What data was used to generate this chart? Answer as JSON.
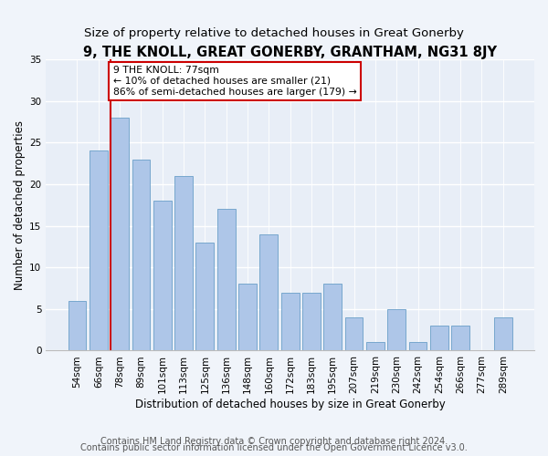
{
  "title": "9, THE KNOLL, GREAT GONERBY, GRANTHAM, NG31 8JY",
  "subtitle": "Size of property relative to detached houses in Great Gonerby",
  "xlabel": "Distribution of detached houses by size in Great Gonerby",
  "ylabel": "Number of detached properties",
  "categories": [
    "54sqm",
    "66sqm",
    "78sqm",
    "89sqm",
    "101sqm",
    "113sqm",
    "125sqm",
    "136sqm",
    "148sqm",
    "160sqm",
    "172sqm",
    "183sqm",
    "195sqm",
    "207sqm",
    "219sqm",
    "230sqm",
    "242sqm",
    "254sqm",
    "266sqm",
    "277sqm",
    "289sqm"
  ],
  "values": [
    6,
    24,
    28,
    23,
    18,
    21,
    13,
    17,
    8,
    14,
    7,
    7,
    8,
    4,
    1,
    5,
    1,
    3,
    3,
    0,
    4
  ],
  "bar_color": "#aec6e8",
  "bar_edge_color": "#6a9fc8",
  "background_color": "#e8eef7",
  "grid_color": "#ffffff",
  "annotation_text": "9 THE KNOLL: 77sqm\n← 10% of detached houses are smaller (21)\n86% of semi-detached houses are larger (179) →",
  "annotation_box_color": "#ffffff",
  "annotation_box_edge_color": "#cc0000",
  "marker_line_color": "#cc0000",
  "ylim": [
    0,
    35
  ],
  "yticks": [
    0,
    5,
    10,
    15,
    20,
    25,
    30,
    35
  ],
  "footer1": "Contains HM Land Registry data © Crown copyright and database right 2024.",
  "footer2": "Contains public sector information licensed under the Open Government Licence v3.0.",
  "title_fontsize": 10.5,
  "subtitle_fontsize": 9.5,
  "axis_label_fontsize": 8.5,
  "tick_fontsize": 7.5,
  "annotation_fontsize": 7.8,
  "footer_fontsize": 7.0
}
